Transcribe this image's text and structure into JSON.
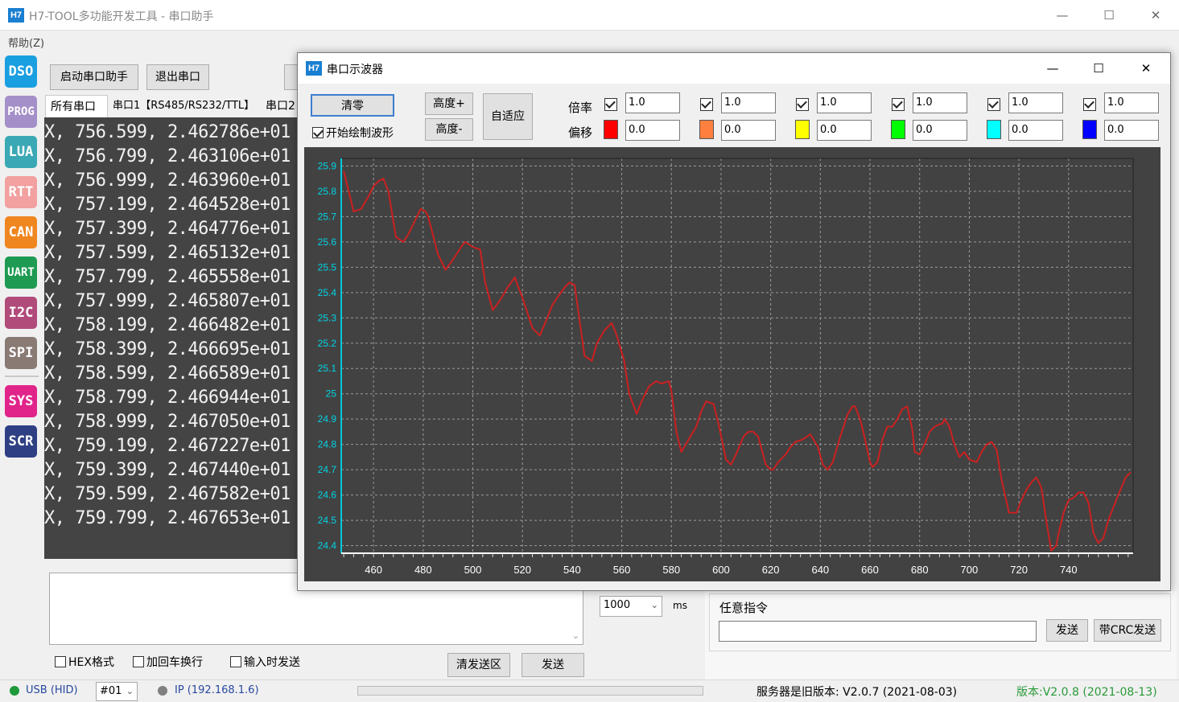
{
  "window": {
    "logo": "H7",
    "title": "H7-TOOL多功能开发工具 - 串口助手",
    "minimize": "—",
    "maximize": "☐",
    "close": "✕"
  },
  "menu": {
    "help": "帮助(Z)"
  },
  "rail": [
    {
      "label": "DSO",
      "color": "#1a9fe0"
    },
    {
      "label": "PROG",
      "color": "#a58fc9"
    },
    {
      "label": "LUA",
      "color": "#3aa9b5"
    },
    {
      "label": "RTT",
      "color": "#f2a0a0"
    },
    {
      "label": "CAN",
      "color": "#f0861f"
    },
    {
      "label": "UART",
      "color": "#1e9a52"
    },
    {
      "label": "I2C",
      "color": "#b04b7a"
    },
    {
      "label": "SPI",
      "color": "#8a7a74"
    },
    {
      "label": "SYS",
      "color": "#e0248a"
    },
    {
      "label": "SCR",
      "color": "#2e3f84"
    }
  ],
  "toolbar": {
    "start": "启动串口助手",
    "exit": "退出串口"
  },
  "tabs": [
    "所有串口",
    "串口1【RS485/RS232/TTL】",
    "串口2"
  ],
  "console_lines": [
    "X, 756.599, 2.462786e+01",
    "X, 756.799, 2.463106e+01",
    "X, 756.999, 2.463960e+01",
    "X, 757.199, 2.464528e+01",
    "X, 757.399, 2.464776e+01",
    "X, 757.599, 2.465132e+01",
    "X, 757.799, 2.465558e+01",
    "X, 757.999, 2.465807e+01",
    "X, 758.199, 2.466482e+01",
    "X, 758.399, 2.466695e+01",
    "X, 758.599, 2.466589e+01",
    "X, 758.799, 2.466944e+01",
    "X, 758.999, 2.467050e+01",
    "X, 759.199, 2.467227e+01",
    "X, 759.399, 2.467440e+01",
    "X, 759.599, 2.467582e+01",
    "X, 759.799, 2.467653e+01"
  ],
  "send": {
    "hex": "HEX格式",
    "crlf": "加回车换行",
    "on_input": "输入时发送",
    "clear": "清发送区",
    "send": "发送",
    "interval": "1000",
    "interval_unit": "ms"
  },
  "command": {
    "legend": "任意指令",
    "send": "发送",
    "send_crc": "带CRC发送",
    "value": ""
  },
  "status": {
    "usb": "USB (HID)",
    "port": "#01",
    "ip": "IP (192.168.1.6)",
    "server": "服务器是旧版本: V2.0.7 (2021-08-03)",
    "version": "版本:V2.0.8 (2021-08-13)",
    "usb_color": "#1e9a3a",
    "ip_color": "#808080"
  },
  "scope": {
    "logo": "H7",
    "title": "串口示波器",
    "minimize": "—",
    "maximize": "☐",
    "close": "✕",
    "clear": "清零",
    "draw": "开始绘制波形",
    "height_up": "高度+",
    "height_down": "高度-",
    "auto": "自适应",
    "rate_label": "倍率",
    "offset_label": "偏移",
    "channels": [
      {
        "rate": "1.0",
        "offset": "0.0",
        "color": "#ff0000",
        "checked": true
      },
      {
        "rate": "1.0",
        "offset": "0.0",
        "color": "#ff7f3f",
        "checked": true
      },
      {
        "rate": "1.0",
        "offset": "0.0",
        "color": "#ffff00",
        "checked": true
      },
      {
        "rate": "1.0",
        "offset": "0.0",
        "color": "#00ff00",
        "checked": true
      },
      {
        "rate": "1.0",
        "offset": "0.0",
        "color": "#00ffff",
        "checked": true
      },
      {
        "rate": "1.0",
        "offset": "0.0",
        "color": "#0000ff",
        "checked": true
      }
    ]
  },
  "chart_data": {
    "type": "line",
    "title": "",
    "xlabel": "",
    "ylabel": "",
    "xlim": [
      447,
      766
    ],
    "ylim": [
      24.37,
      25.93
    ],
    "x_ticks": [
      460,
      480,
      500,
      520,
      540,
      560,
      580,
      600,
      620,
      640,
      660,
      680,
      700,
      720,
      740
    ],
    "y_ticks": [
      24.4,
      24.5,
      24.6,
      24.7,
      24.8,
      24.9,
      25,
      25.1,
      25.2,
      25.3,
      25.4,
      25.5,
      25.6,
      25.7,
      25.8,
      25.9
    ],
    "grid": true,
    "line_color": "#cc2020",
    "axis_color": "#ffffff",
    "series": [
      {
        "name": "",
        "x": [
          448,
          450,
          452,
          455,
          458,
          460,
          462,
          464,
          466,
          469,
          472,
          474,
          476,
          478,
          479,
          481,
          482,
          486,
          489,
          492,
          494,
          496,
          497,
          500,
          503,
          505,
          508,
          511,
          514,
          517,
          518,
          520,
          524,
          527,
          530,
          532,
          534,
          537,
          539,
          541,
          545,
          548,
          550,
          553,
          556,
          558,
          561,
          563,
          566,
          568,
          571,
          574,
          576,
          579,
          580,
          582,
          584,
          587,
          590,
          592,
          594,
          597,
          599,
          602,
          604,
          606,
          609,
          611,
          613,
          615,
          618,
          620,
          621,
          623,
          626,
          628,
          630,
          633,
          636,
          639,
          641,
          643,
          645,
          648,
          651,
          653,
          654,
          656,
          658,
          660,
          661,
          663,
          665,
          667,
          669,
          671,
          673,
          675,
          677,
          678,
          680,
          682,
          684,
          686,
          688,
          689,
          690,
          692,
          694,
          696,
          698,
          700,
          703,
          705,
          707,
          709,
          711,
          713,
          716,
          719,
          721,
          723,
          725,
          727,
          729,
          731,
          733,
          735,
          736,
          738,
          740,
          742,
          744,
          746,
          748,
          750,
          752,
          754,
          756,
          758,
          760,
          763,
          765
        ],
        "y": [
          25.88,
          25.8,
          25.72,
          25.73,
          25.78,
          25.82,
          25.84,
          25.85,
          25.8,
          25.62,
          25.6,
          25.63,
          25.67,
          25.71,
          25.73,
          25.72,
          25.7,
          25.55,
          25.49,
          25.53,
          25.56,
          25.59,
          25.6,
          25.58,
          25.57,
          25.44,
          25.33,
          25.37,
          25.42,
          25.46,
          25.43,
          25.38,
          25.26,
          25.23,
          25.3,
          25.35,
          25.38,
          25.42,
          25.44,
          25.43,
          25.15,
          25.13,
          25.2,
          25.25,
          25.28,
          25.23,
          25.13,
          25,
          24.92,
          24.97,
          25.03,
          25.05,
          25.04,
          25.05,
          25.01,
          24.85,
          24.77,
          24.82,
          24.87,
          24.93,
          24.97,
          24.96,
          24.88,
          24.74,
          24.72,
          24.76,
          24.83,
          24.85,
          24.85,
          24.83,
          24.72,
          24.7,
          24.7,
          24.73,
          24.76,
          24.79,
          24.81,
          24.82,
          24.84,
          24.79,
          24.72,
          24.7,
          24.73,
          24.83,
          24.92,
          24.95,
          24.95,
          24.9,
          24.82,
          24.73,
          24.71,
          24.73,
          24.82,
          24.87,
          24.87,
          24.9,
          24.94,
          24.95,
          24.86,
          24.77,
          24.76,
          24.8,
          24.85,
          24.87,
          24.88,
          24.88,
          24.9,
          24.87,
          24.8,
          24.75,
          24.77,
          24.74,
          24.73,
          24.77,
          24.8,
          24.81,
          24.78,
          24.66,
          24.53,
          24.53,
          24.58,
          24.62,
          24.65,
          24.67,
          24.63,
          24.5,
          24.38,
          24.4,
          24.45,
          24.53,
          24.58,
          24.59,
          24.61,
          24.61,
          24.57,
          24.45,
          24.41,
          24.43,
          24.5,
          24.55,
          24.6,
          24.67,
          24.69
        ]
      }
    ]
  }
}
